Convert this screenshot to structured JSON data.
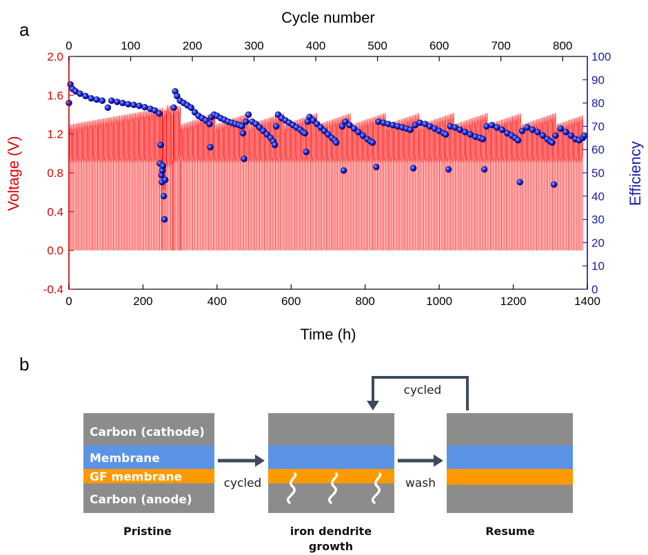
{
  "panel_a": {
    "label": "a",
    "chart_data": {
      "type": "line",
      "x_label": "Time (h)",
      "x_range": [
        0,
        1400
      ],
      "x_ticks": [
        0,
        200,
        400,
        600,
        800,
        1000,
        1200,
        1400
      ],
      "top_axis_label": "Cycle number",
      "top_axis_range": [
        0,
        840
      ],
      "top_ticks": [
        0,
        100,
        200,
        300,
        400,
        500,
        600,
        700,
        800
      ],
      "y_left_label": "Voltage (V)",
      "y_left_range": [
        -0.4,
        2.0
      ],
      "y_left_ticks": [
        -0.4,
        0.0,
        0.4,
        0.8,
        1.2,
        1.6,
        2.0
      ],
      "y_right_label": "Efficiency",
      "y_right_range": [
        0,
        100
      ],
      "y_right_ticks": [
        0,
        10,
        20,
        30,
        40,
        50,
        60,
        70,
        80,
        90,
        100
      ],
      "colors": {
        "voltage": "#ff0000",
        "efficiency": "#1f2fd0",
        "efficiency_edge": "#00007a",
        "left_axis": "#e00000",
        "right_axis": "#1a1aa8"
      },
      "series": [
        {
          "axis": "left",
          "kind": "voltage-cycling",
          "period_h": 4.3,
          "segments": [
            {
              "t_start": 0,
              "t_end": 250,
              "v_low": 0.0,
              "v_plateau": 0.9,
              "v_max_start": 1.3,
              "v_max_end": 1.47
            },
            {
              "t_start": 250,
              "t_end": 262,
              "v_low": 0.0,
              "v_plateau": 0.6,
              "v_max_start": 1.45,
              "v_max_end": 1.45
            },
            {
              "t_start": 262,
              "t_end": 280,
              "v_low": 0.0,
              "v_plateau": 0.85,
              "v_max_start": 1.5,
              "v_max_end": 1.48
            },
            {
              "t_start": 280,
              "t_end": 300,
              "v_low": 0.0,
              "v_plateau": 0.9,
              "v_max_start": 1.5,
              "v_max_end": 1.48
            },
            {
              "t_start": 300,
              "t_end": 1385,
              "v_low": 0.0,
              "v_plateau": 0.9,
              "v_max_start": 1.3,
              "v_max_end": 1.42,
              "sawtooth_period_h": 92
            }
          ]
        },
        {
          "axis": "right",
          "kind": "efficiency-scatter",
          "points": [
            [
              0,
              80
            ],
            [
              4,
              88
            ],
            [
              10,
              86
            ],
            [
              18,
              85
            ],
            [
              30,
              84
            ],
            [
              45,
              83
            ],
            [
              60,
              82
            ],
            [
              75,
              81.5
            ],
            [
              90,
              81
            ],
            [
              105,
              78
            ],
            [
              115,
              81
            ],
            [
              130,
              80.5
            ],
            [
              145,
              80
            ],
            [
              160,
              79.5
            ],
            [
              175,
              79.2
            ],
            [
              190,
              78.8
            ],
            [
              205,
              78.2
            ],
            [
              220,
              77.5
            ],
            [
              232,
              76.8
            ],
            [
              244,
              75.5
            ],
            [
              246,
              54
            ],
            [
              248,
              62
            ],
            [
              250,
              49
            ],
            [
              251,
              46
            ],
            [
              252,
              51
            ],
            [
              254,
              53
            ],
            [
              256,
              40
            ],
            [
              258,
              30
            ],
            [
              260,
              47
            ],
            [
              283,
              78
            ],
            [
              287,
              85
            ],
            [
              292,
              83
            ],
            [
              300,
              81
            ],
            [
              310,
              80
            ],
            [
              320,
              79
            ],
            [
              330,
              78
            ],
            [
              340,
              76
            ],
            [
              350,
              74.5
            ],
            [
              360,
              73.5
            ],
            [
              370,
              72.5
            ],
            [
              380,
              71
            ],
            [
              382,
              61
            ],
            [
              385,
              74
            ],
            [
              392,
              75
            ],
            [
              400,
              74.5
            ],
            [
              410,
              73.5
            ],
            [
              420,
              72.8
            ],
            [
              430,
              72
            ],
            [
              440,
              71.5
            ],
            [
              450,
              71
            ],
            [
              460,
              70.5
            ],
            [
              467,
              70
            ],
            [
              470,
              67
            ],
            [
              473,
              56
            ],
            [
              478,
              72
            ],
            [
              485,
              75
            ],
            [
              495,
              72
            ],
            [
              505,
              71
            ],
            [
              515,
              69.5
            ],
            [
              525,
              68
            ],
            [
              535,
              66.5
            ],
            [
              545,
              65
            ],
            [
              552,
              63.5
            ],
            [
              556,
              62
            ],
            [
              560,
              70
            ],
            [
              565,
              75
            ],
            [
              575,
              73.5
            ],
            [
              585,
              72.5
            ],
            [
              595,
              71.5
            ],
            [
              605,
              70.5
            ],
            [
              615,
              69.5
            ],
            [
              625,
              68.5
            ],
            [
              632,
              67.5
            ],
            [
              637,
              67
            ],
            [
              641,
              59
            ],
            [
              645,
              72
            ],
            [
              650,
              74
            ],
            [
              660,
              72.5
            ],
            [
              670,
              71
            ],
            [
              680,
              69.5
            ],
            [
              690,
              68
            ],
            [
              700,
              66.5
            ],
            [
              710,
              65
            ],
            [
              718,
              64
            ],
            [
              722,
              63
            ],
            [
              738,
              70
            ],
            [
              742,
              51
            ],
            [
              747,
              72
            ],
            [
              758,
              70.5
            ],
            [
              770,
              69
            ],
            [
              782,
              67.5
            ],
            [
              794,
              66
            ],
            [
              806,
              64.5
            ],
            [
              815,
              63.5
            ],
            [
              820,
              63
            ],
            [
              830,
              52.5
            ],
            [
              836,
              72
            ],
            [
              850,
              71.5
            ],
            [
              862,
              71
            ],
            [
              875,
              70.5
            ],
            [
              888,
              70
            ],
            [
              900,
              69.5
            ],
            [
              912,
              69
            ],
            [
              922,
              68.5
            ],
            [
              930,
              52
            ],
            [
              935,
              70.5
            ],
            [
              948,
              71.5
            ],
            [
              962,
              71
            ],
            [
              975,
              70
            ],
            [
              988,
              69
            ],
            [
              1000,
              68
            ],
            [
              1012,
              67
            ],
            [
              1018,
              66.5
            ],
            [
              1025,
              51.5
            ],
            [
              1030,
              70
            ],
            [
              1043,
              69.5
            ],
            [
              1056,
              68.5
            ],
            [
              1070,
              67.5
            ],
            [
              1084,
              66.5
            ],
            [
              1098,
              65.5
            ],
            [
              1110,
              65
            ],
            [
              1118,
              64.5
            ],
            [
              1122,
              51.5
            ],
            [
              1128,
              70
            ],
            [
              1142,
              70.5
            ],
            [
              1156,
              69.5
            ],
            [
              1170,
              68.5
            ],
            [
              1184,
              67
            ],
            [
              1196,
              66
            ],
            [
              1205,
              65
            ],
            [
              1213,
              64
            ],
            [
              1218,
              46
            ],
            [
              1224,
              68
            ],
            [
              1238,
              69.5
            ],
            [
              1252,
              68.5
            ],
            [
              1266,
              67.5
            ],
            [
              1280,
              66
            ],
            [
              1292,
              64.5
            ],
            [
              1300,
              63.5
            ],
            [
              1305,
              63
            ],
            [
              1310,
              45
            ],
            [
              1314,
              66
            ],
            [
              1328,
              69
            ],
            [
              1342,
              67.5
            ],
            [
              1356,
              66
            ],
            [
              1368,
              64.5
            ],
            [
              1378,
              64
            ],
            [
              1388,
              65
            ],
            [
              1392,
              66
            ]
          ]
        }
      ]
    }
  },
  "panel_b": {
    "label": "b",
    "colors": {
      "carbon": "#8c8c8c",
      "membrane": "#5b93e6",
      "gf": "#ff9900",
      "arrow": "#3d4a5c",
      "dendrite": "#ffffff"
    },
    "pristine": {
      "cathode_label": "Carbon (cathode)",
      "membrane_label": "Membrane",
      "gf_label": "GF membrane",
      "anode_label": "Carbon (anode)",
      "caption": "Pristine"
    },
    "dendrite": {
      "caption_line1": "iron dendrite",
      "caption_line2": "growth"
    },
    "resume": {
      "caption": "Resume"
    },
    "arrow_cycled": "cycled",
    "arrow_wash": "wash",
    "loop_label": "cycled"
  }
}
